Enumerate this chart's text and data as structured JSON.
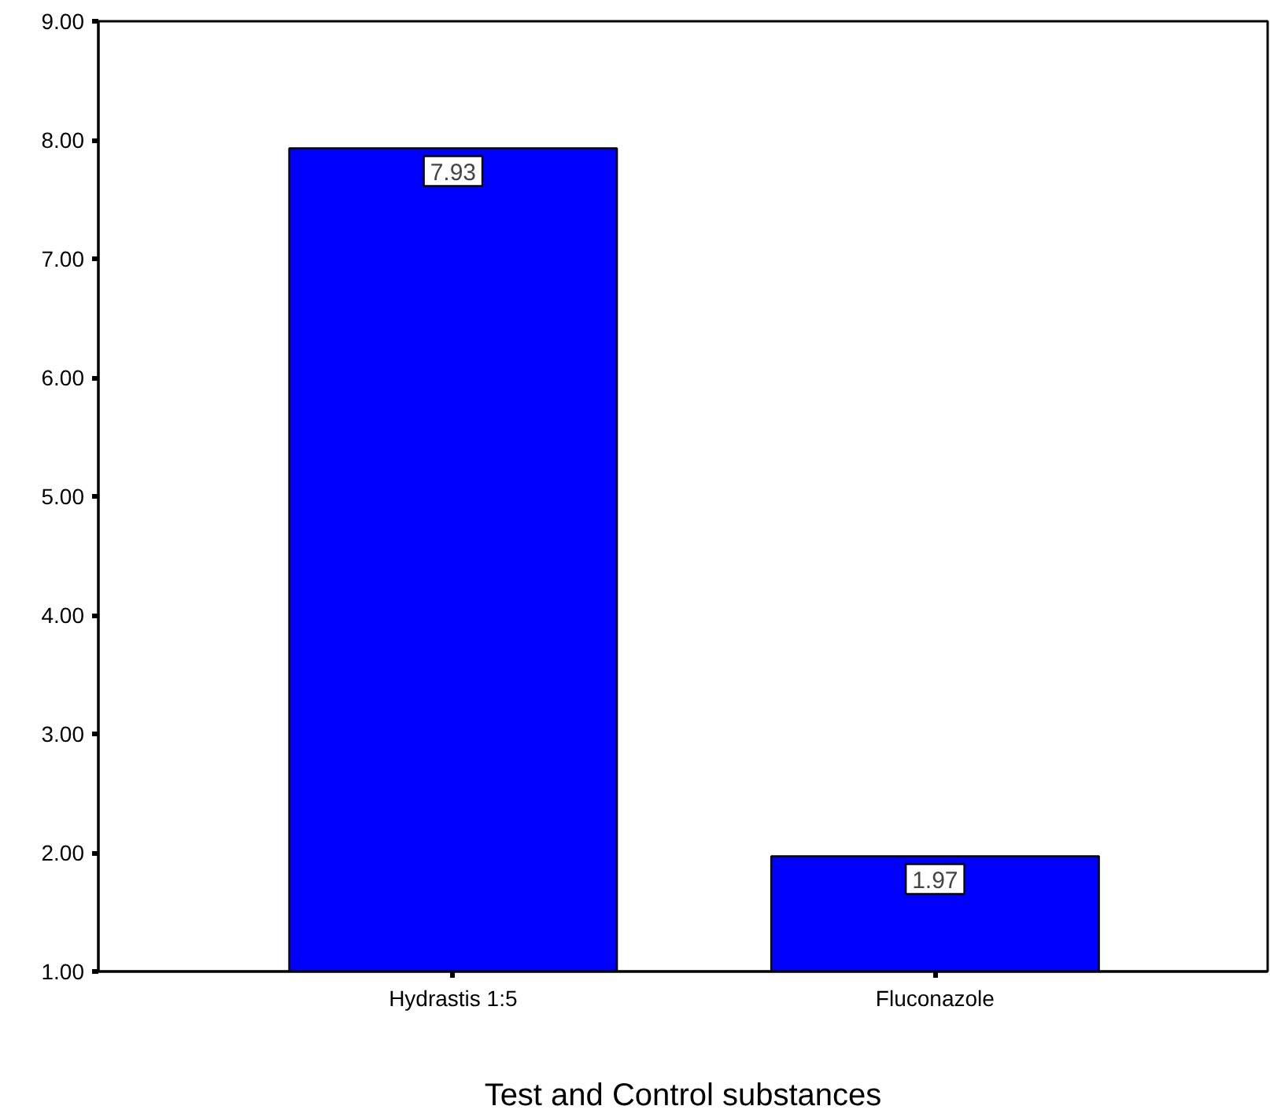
{
  "chart_data": {
    "type": "bar",
    "xlabel": "Test and Control substances",
    "categories": [
      "Hydrastis 1:5",
      "Fluconazole"
    ],
    "values": [
      7.93,
      1.97
    ],
    "color": "#0000ff",
    "ylim": [
      1,
      9
    ],
    "yticks": [
      {
        "value": 1,
        "label": "1.00"
      },
      {
        "value": 2,
        "label": "2.00"
      },
      {
        "value": 3,
        "label": "3.00"
      },
      {
        "value": 4,
        "label": "4.00"
      },
      {
        "value": 5,
        "label": "5.00"
      },
      {
        "value": 6,
        "label": "6.00"
      },
      {
        "value": 7,
        "label": "7.00"
      },
      {
        "value": 8,
        "label": "8.00"
      },
      {
        "value": 9,
        "label": "9.00"
      }
    ],
    "data_labels": true,
    "grid": false
  }
}
